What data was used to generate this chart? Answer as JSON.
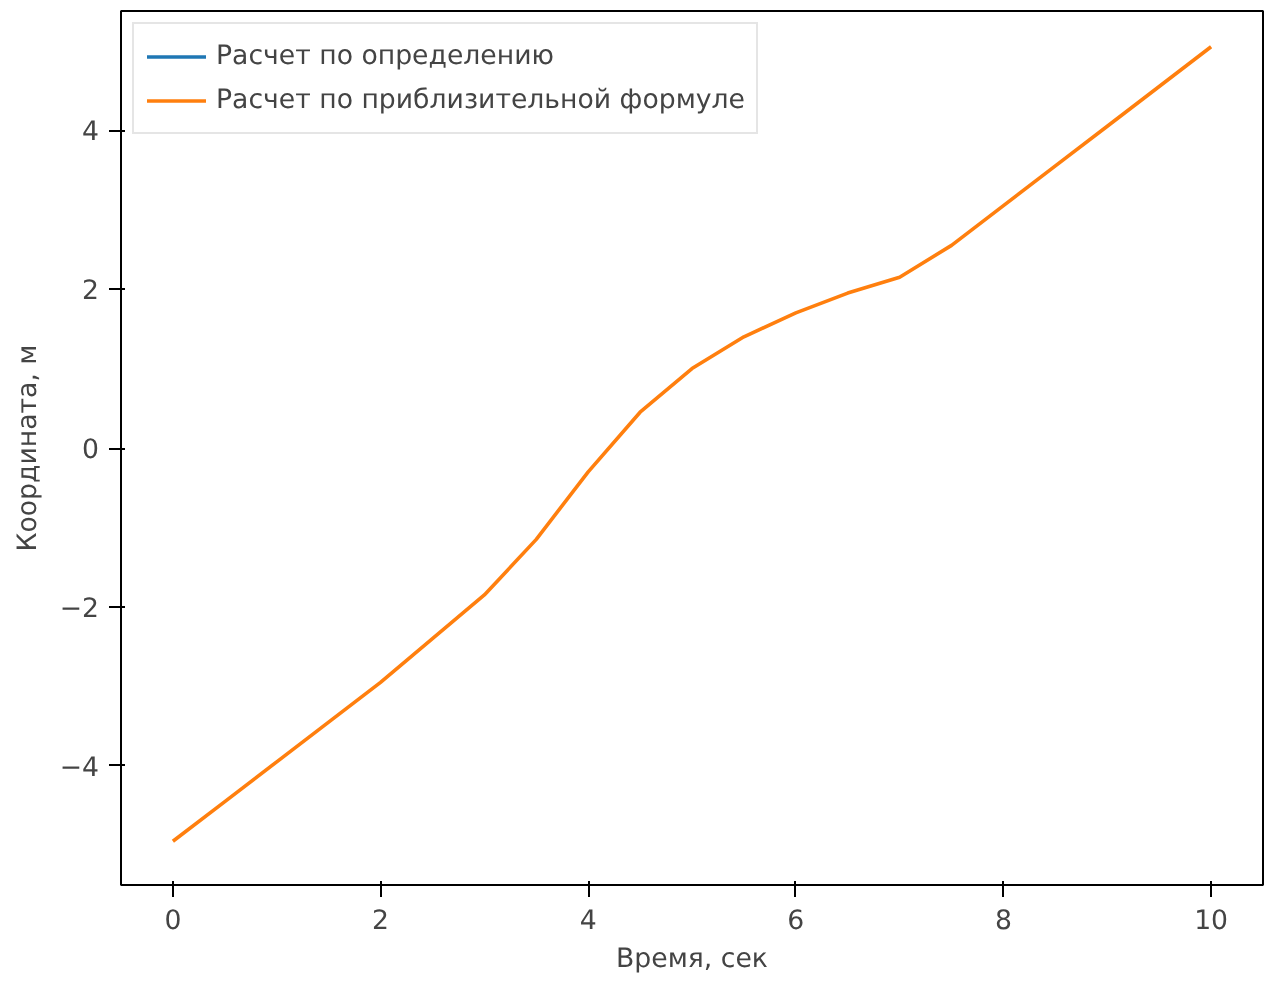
{
  "chart_data": {
    "type": "line",
    "xlabel": "Время, сек",
    "ylabel": "Координата, м",
    "x": [
      0,
      0.5,
      1,
      1.5,
      2,
      2.5,
      3,
      3.5,
      4,
      4.5,
      5,
      5.5,
      6,
      6.5,
      7,
      7.5,
      8,
      8.5,
      9,
      9.5,
      10
    ],
    "series": [
      {
        "name": "Расчет по определению",
        "color": "#1f77b4",
        "values": [
          null,
          null,
          null,
          null,
          null,
          null,
          null,
          null,
          null,
          null,
          null,
          null,
          null,
          null,
          null,
          null,
          null,
          null,
          null,
          null,
          null
        ]
      },
      {
        "name": "Расчет по приблизительной формуле",
        "color": "#ff7f0e",
        "values": [
          -4.95,
          -4.45,
          -3.95,
          -3.45,
          -2.95,
          -2.4,
          -1.85,
          -1.15,
          -0.3,
          0.45,
          1.0,
          1.4,
          1.7,
          1.95,
          2.15,
          2.55,
          3.05,
          3.55,
          4.05,
          4.55,
          5.05
        ]
      }
    ],
    "xlim": [
      -0.5,
      10.5
    ],
    "ylim": [
      -5.5,
      5.5
    ],
    "xticks": [
      0,
      2,
      4,
      6,
      8,
      10
    ],
    "yticks": [
      {
        "value": -4,
        "label": "−4"
      },
      {
        "value": -2,
        "label": "−2"
      },
      0,
      2,
      4
    ],
    "grid": false,
    "legend": "top left",
    "marker": "none",
    "line_style": "solid"
  }
}
